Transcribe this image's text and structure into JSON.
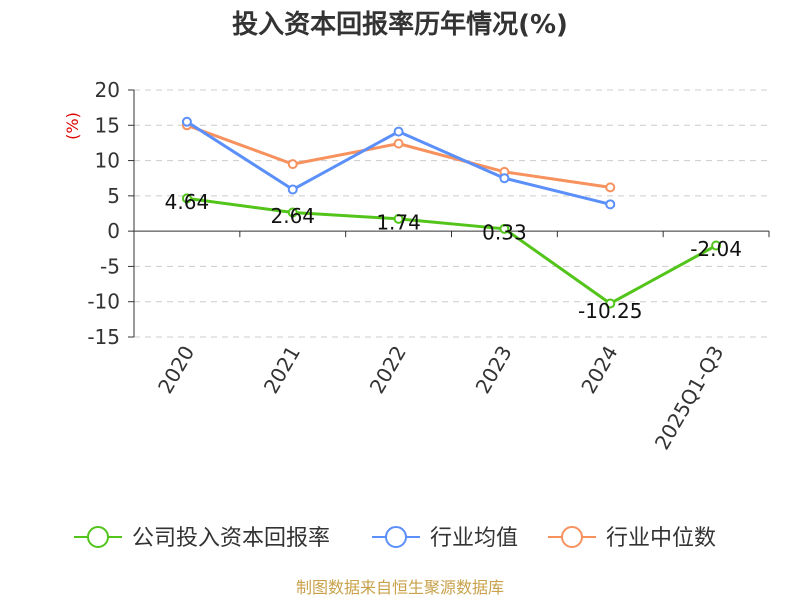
{
  "chart_data": {
    "type": "line",
    "title": "投入资本回报率历年情况(%)",
    "ylabel": "(%)",
    "xlabel": "",
    "categories": [
      "2020",
      "2021",
      "2022",
      "2023",
      "2024",
      "2025Q1-Q3"
    ],
    "ylim": [
      -15,
      20
    ],
    "yticks": [
      20,
      15,
      10,
      5,
      0,
      -5,
      -10,
      -15
    ],
    "grid": true,
    "legend_position": "bottom",
    "series": [
      {
        "name": "公司投入资本回报率",
        "color": "#52c41a",
        "values": [
          4.64,
          2.64,
          1.74,
          0.33,
          -10.25,
          -2.04
        ],
        "labels": [
          "4.64",
          "2.64",
          "1.74",
          "0.33",
          "-10.25",
          "-2.04"
        ]
      },
      {
        "name": "行业均值",
        "color": "#5b8ff9",
        "values": [
          15.5,
          5.9,
          14.1,
          7.5,
          3.8,
          null
        ]
      },
      {
        "name": "行业中位数",
        "color": "#f7925f",
        "values": [
          15.0,
          9.5,
          12.4,
          8.4,
          6.2,
          null
        ]
      }
    ],
    "source": "制图数据来自恒生聚源数据库"
  }
}
